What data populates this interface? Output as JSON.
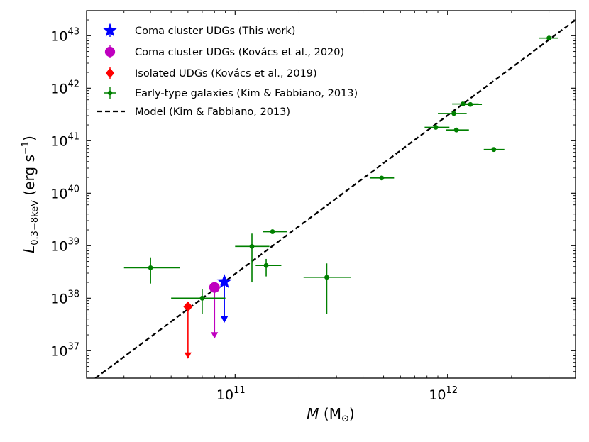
{
  "chart_data": {
    "type": "scatter",
    "title": "",
    "xscale": "log",
    "yscale": "log",
    "xlim": [
      20000000000.0,
      4000000000000.0
    ],
    "ylim": [
      3e+36,
      3e+43
    ],
    "xlabel": {
      "symbol": "M",
      "unit": "(M",
      "sun": "⊙",
      "close": ")"
    },
    "ylabel": {
      "symbol": "L",
      "sub": "0.3−8keV",
      "unit": " (erg s",
      "sup": "−1",
      "close": ")"
    },
    "x_ticks": [
      {
        "value": 100000000000.0,
        "mantissa": "10",
        "exp": "11"
      },
      {
        "value": 1000000000000.0,
        "mantissa": "10",
        "exp": "12"
      }
    ],
    "y_ticks": [
      {
        "value": 1e+37,
        "mantissa": "10",
        "exp": "37"
      },
      {
        "value": 1e+38,
        "mantissa": "10",
        "exp": "38"
      },
      {
        "value": 1e+39,
        "mantissa": "10",
        "exp": "39"
      },
      {
        "value": 1e+40,
        "mantissa": "10",
        "exp": "40"
      },
      {
        "value": 1e+41,
        "mantissa": "10",
        "exp": "41"
      },
      {
        "value": 1e+42,
        "mantissa": "10",
        "exp": "42"
      },
      {
        "value": 1e+43,
        "mantissa": "10",
        "exp": "43"
      }
    ],
    "colors": {
      "coma_this_work": "#0000ff",
      "coma_kovacs": "#bf00bf",
      "isolated": "#ff0000",
      "early_type": "#008000",
      "model": "#000000"
    },
    "legend": {
      "position": "top-left",
      "entries": [
        {
          "key": "coma_this_work",
          "label": "Coma cluster UDGs (This work)",
          "marker": "star"
        },
        {
          "key": "coma_kovacs",
          "label": "Coma cluster UDGs (Kovács et al., 2020)",
          "marker": "circle"
        },
        {
          "key": "isolated",
          "label": "Isolated UDGs (Kovács et al., 2019)",
          "marker": "diamond"
        },
        {
          "key": "early_type",
          "label": "Early-type galaxies (Kim & Fabbiano, 2013)",
          "marker": "smallcircle"
        },
        {
          "key": "model",
          "label": "Model (Kim & Fabbiano, 2013)",
          "marker": "dashed"
        }
      ]
    },
    "model_line": {
      "points": [
        [
          22000000000.0,
          3e+36
        ],
        [
          4000000000000.0,
          2e+43
        ]
      ]
    },
    "series": [
      {
        "key": "coma_this_work",
        "name": "Coma cluster UDGs (This work)",
        "marker": "star",
        "points": [
          {
            "x": 89000000000.0,
            "y": 2.05e+38,
            "upper_limit_to": 3.4e+37
          }
        ]
      },
      {
        "key": "coma_kovacs",
        "name": "Coma cluster UDGs (Kovács et al., 2020)",
        "marker": "circle",
        "points": [
          {
            "x": 80000000000.0,
            "y": 1.6e+38,
            "upper_limit_to": 1.7e+37
          }
        ]
      },
      {
        "key": "isolated",
        "name": "Isolated UDGs (Kovács et al., 2019)",
        "marker": "diamond",
        "points": [
          {
            "x": 60000000000.0,
            "y": 6.9e+37,
            "upper_limit_to": 7e+36
          }
        ]
      },
      {
        "key": "early_type",
        "name": "Early-type galaxies (Kim & Fabbiano, 2013)",
        "marker": "smallcircle",
        "points": [
          {
            "x": 40000000000.0,
            "y": 3.8e+38,
            "x_err": [
              30000000000.0,
              55000000000.0
            ],
            "y_err": [
              1.9e+38,
              6e+38
            ]
          },
          {
            "x": 70000000000.0,
            "y": 1e+38,
            "x_err": [
              50000000000.0,
              90000000000.0
            ],
            "y_err": [
              5e+37,
              1.5e+38
            ]
          },
          {
            "x": 120000000000.0,
            "y": 9.7e+38,
            "x_err": [
              100000000000.0,
              145000000000.0
            ],
            "y_err": [
              2e+38,
              1.7e+39
            ]
          },
          {
            "x": 140000000000.0,
            "y": 4.2e+38,
            "x_err": [
              125000000000.0,
              165000000000.0
            ],
            "y_err": [
              2.6e+38,
              5.6e+38
            ]
          },
          {
            "x": 150000000000.0,
            "y": 1.85e+39,
            "x_err": [
              135000000000.0,
              175000000000.0
            ],
            "y_err": [
              1.75e+39,
              1.95e+39
            ]
          },
          {
            "x": 270000000000.0,
            "y": 2.5e+38,
            "x_err": [
              210000000000.0,
              350000000000.0
            ],
            "y_err": [
              5e+37,
              4.6e+38
            ]
          },
          {
            "x": 490000000000.0,
            "y": 1.95e+40,
            "x_err": [
              430000000000.0,
              560000000000.0
            ],
            "y_err": [
              1.85e+40,
              2.05e+40
            ]
          },
          {
            "x": 880000000000.0,
            "y": 1.8e+41,
            "x_err": [
              780000000000.0,
              1020000000000.0
            ],
            "y_err": [
              1.7e+41,
              1.9e+41
            ]
          },
          {
            "x": 1070000000000.0,
            "y": 3.3e+41,
            "x_err": [
              900000000000.0,
              1230000000000.0
            ],
            "y_err": [
              3.15e+41,
              3.45e+41
            ]
          },
          {
            "x": 1100000000000.0,
            "y": 1.6e+41,
            "x_err": [
              980000000000.0,
              1260000000000.0
            ],
            "y_err": [
              1.5e+41,
              1.7e+41
            ]
          },
          {
            "x": 1180000000000.0,
            "y": 5e+41,
            "x_err": [
              1050000000000.0,
              1400000000000.0
            ],
            "y_err": [
              4.8e+41,
              5.2e+41
            ]
          },
          {
            "x": 1280000000000.0,
            "y": 4.9e+41,
            "x_err": [
              1150000000000.0,
              1450000000000.0
            ],
            "y_err": [
              4.7e+41,
              5.1e+41
            ]
          },
          {
            "x": 1650000000000.0,
            "y": 6.8e+40,
            "x_err": [
              1480000000000.0,
              1850000000000.0
            ],
            "y_err": [
              6.5e+40,
              7.1e+40
            ]
          },
          {
            "x": 3000000000000.0,
            "y": 9e+42,
            "x_err": [
              2700000000000.0,
              3300000000000.0
            ],
            "y_err": [
              8.7e+42,
              9.3e+42
            ]
          }
        ]
      }
    ]
  }
}
